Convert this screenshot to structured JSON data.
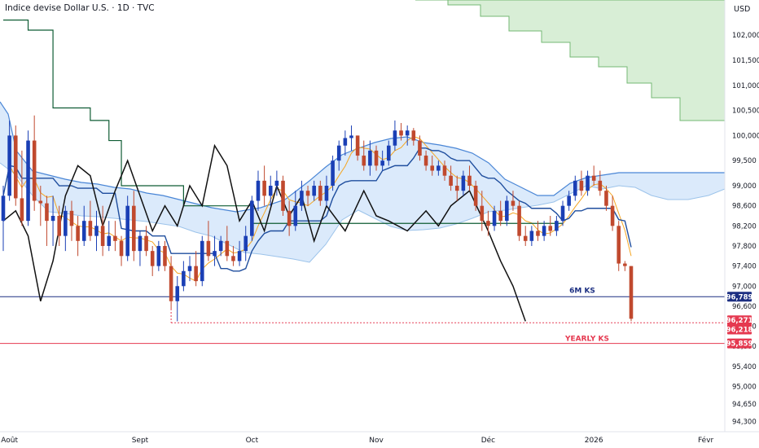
{
  "header": {
    "title": "Indice devise Dollar U.S. · 1D · TVC",
    "currency": "USD"
  },
  "colors": {
    "up": "#1a3fb5",
    "down": "#c0492e",
    "kijun_long": "#0f5c34",
    "black_line": "#111111",
    "tenkan": "#f5a623",
    "kijun": "#1f4e9e",
    "span_a": "#4a86d6",
    "span_b": "#9cc3ea",
    "cloud_bull": "#dbeafb",
    "cloud_green": "#d8eed6",
    "level_6m": "#1c2f82",
    "level_yearly": "#e53950",
    "dotted": "#e53950"
  },
  "chart_data": {
    "type": "candlestick",
    "title": "Indice devise Dollar U.S. · 1D · TVC",
    "y_axis": {
      "ticks": [
        102.0,
        101.5,
        101.0,
        100.5,
        100.0,
        99.5,
        99.0,
        98.6,
        98.2,
        97.8,
        97.4,
        97.0,
        96.6,
        96.2,
        95.8,
        95.4,
        95.0,
        94.65,
        94.3
      ],
      "labels": [
        "102,000",
        "101,500",
        "101,000",
        "100,500",
        "100,000",
        "99,500",
        "99,000",
        "98,600",
        "98,200",
        "97,800",
        "97,400",
        "97,000",
        "96,600",
        "96,200",
        "95,800",
        "95,400",
        "95,000",
        "94,650",
        "94,300"
      ],
      "currency": "USD"
    },
    "x_axis": {
      "labels": [
        "Août",
        "Sept",
        "Oct",
        "Nov",
        "Déc",
        "2026",
        "Févr"
      ],
      "positions": [
        1,
        22,
        40,
        60,
        78,
        95,
        113
      ]
    },
    "candles": [
      {
        "o": 98.3,
        "h": 99.0,
        "l": 97.7,
        "c": 98.8
      },
      {
        "o": 98.8,
        "h": 100.3,
        "l": 98.7,
        "c": 100.0
      },
      {
        "o": 100.0,
        "h": 100.2,
        "l": 98.6,
        "c": 98.75
      },
      {
        "o": 98.75,
        "h": 99.7,
        "l": 98.2,
        "c": 98.3
      },
      {
        "o": 98.3,
        "h": 100.1,
        "l": 98.2,
        "c": 99.9
      },
      {
        "o": 99.9,
        "h": 100.4,
        "l": 98.5,
        "c": 98.7
      },
      {
        "o": 98.7,
        "h": 99.0,
        "l": 98.2,
        "c": 98.65
      },
      {
        "o": 98.65,
        "h": 98.8,
        "l": 97.8,
        "c": 98.3
      },
      {
        "o": 98.3,
        "h": 98.8,
        "l": 97.8,
        "c": 98.4
      },
      {
        "o": 98.4,
        "h": 98.6,
        "l": 97.8,
        "c": 98.0
      },
      {
        "o": 98.0,
        "h": 98.6,
        "l": 97.7,
        "c": 98.5
      },
      {
        "o": 98.5,
        "h": 98.7,
        "l": 97.9,
        "c": 98.2
      },
      {
        "o": 98.2,
        "h": 98.4,
        "l": 97.6,
        "c": 97.9
      },
      {
        "o": 97.9,
        "h": 98.6,
        "l": 97.8,
        "c": 98.3
      },
      {
        "o": 98.3,
        "h": 98.7,
        "l": 97.9,
        "c": 98.0
      },
      {
        "o": 98.0,
        "h": 98.5,
        "l": 97.7,
        "c": 98.2
      },
      {
        "o": 98.2,
        "h": 98.6,
        "l": 97.6,
        "c": 97.8
      },
      {
        "o": 97.8,
        "h": 98.3,
        "l": 97.7,
        "c": 98.0
      },
      {
        "o": 98.0,
        "h": 98.3,
        "l": 97.7,
        "c": 97.9
      },
      {
        "o": 97.9,
        "h": 98.0,
        "l": 97.4,
        "c": 97.6
      },
      {
        "o": 97.6,
        "h": 98.8,
        "l": 97.5,
        "c": 98.6
      },
      {
        "o": 98.6,
        "h": 98.9,
        "l": 97.5,
        "c": 97.7
      },
      {
        "o": 97.7,
        "h": 98.1,
        "l": 97.4,
        "c": 98.0
      },
      {
        "o": 98.0,
        "h": 98.2,
        "l": 97.6,
        "c": 97.7
      },
      {
        "o": 97.7,
        "h": 97.8,
        "l": 97.2,
        "c": 97.4
      },
      {
        "o": 97.4,
        "h": 97.9,
        "l": 97.3,
        "c": 97.8
      },
      {
        "o": 97.8,
        "h": 97.9,
        "l": 97.3,
        "c": 97.4
      },
      {
        "o": 97.4,
        "h": 97.6,
        "l": 96.55,
        "c": 96.7
      },
      {
        "o": 96.7,
        "h": 97.2,
        "l": 96.3,
        "c": 97.0
      },
      {
        "o": 97.0,
        "h": 97.5,
        "l": 96.9,
        "c": 97.3
      },
      {
        "o": 97.3,
        "h": 97.6,
        "l": 97.1,
        "c": 97.4
      },
      {
        "o": 97.4,
        "h": 97.7,
        "l": 97.0,
        "c": 97.1
      },
      {
        "o": 97.1,
        "h": 98.0,
        "l": 97.0,
        "c": 97.9
      },
      {
        "o": 97.9,
        "h": 98.3,
        "l": 97.5,
        "c": 97.6
      },
      {
        "o": 97.6,
        "h": 98.0,
        "l": 97.4,
        "c": 97.7
      },
      {
        "o": 97.7,
        "h": 98.0,
        "l": 97.6,
        "c": 97.9
      },
      {
        "o": 97.9,
        "h": 98.2,
        "l": 97.5,
        "c": 97.6
      },
      {
        "o": 97.6,
        "h": 97.8,
        "l": 97.4,
        "c": 97.5
      },
      {
        "o": 97.5,
        "h": 97.9,
        "l": 97.4,
        "c": 97.7
      },
      {
        "o": 97.7,
        "h": 98.2,
        "l": 97.5,
        "c": 98.0
      },
      {
        "o": 98.0,
        "h": 98.8,
        "l": 97.9,
        "c": 98.7
      },
      {
        "o": 98.7,
        "h": 99.3,
        "l": 98.5,
        "c": 99.1
      },
      {
        "o": 99.1,
        "h": 99.4,
        "l": 98.6,
        "c": 98.8
      },
      {
        "o": 98.8,
        "h": 99.2,
        "l": 98.6,
        "c": 99.0
      },
      {
        "o": 99.0,
        "h": 99.3,
        "l": 98.8,
        "c": 99.1
      },
      {
        "o": 99.1,
        "h": 99.2,
        "l": 98.4,
        "c": 98.5
      },
      {
        "o": 98.5,
        "h": 98.7,
        "l": 98.0,
        "c": 98.2
      },
      {
        "o": 98.2,
        "h": 98.9,
        "l": 98.1,
        "c": 98.6
      },
      {
        "o": 98.6,
        "h": 99.1,
        "l": 98.5,
        "c": 98.9
      },
      {
        "o": 98.9,
        "h": 99.0,
        "l": 98.6,
        "c": 98.8
      },
      {
        "o": 98.8,
        "h": 99.1,
        "l": 98.7,
        "c": 99.0
      },
      {
        "o": 99.0,
        "h": 99.1,
        "l": 98.6,
        "c": 98.7
      },
      {
        "o": 98.7,
        "h": 99.2,
        "l": 98.6,
        "c": 99.0
      },
      {
        "o": 99.0,
        "h": 99.6,
        "l": 98.9,
        "c": 99.5
      },
      {
        "o": 99.5,
        "h": 99.9,
        "l": 99.3,
        "c": 99.8
      },
      {
        "o": 99.8,
        "h": 100.1,
        "l": 99.6,
        "c": 99.95
      },
      {
        "o": 99.95,
        "h": 100.2,
        "l": 99.7,
        "c": 100.0
      },
      {
        "o": 100.0,
        "h": 100.0,
        "l": 99.5,
        "c": 99.6
      },
      {
        "o": 99.6,
        "h": 99.9,
        "l": 99.3,
        "c": 99.4
      },
      {
        "o": 99.4,
        "h": 99.9,
        "l": 99.2,
        "c": 99.7
      },
      {
        "o": 99.7,
        "h": 99.8,
        "l": 99.3,
        "c": 99.4
      },
      {
        "o": 99.4,
        "h": 99.7,
        "l": 99.3,
        "c": 99.5
      },
      {
        "o": 99.5,
        "h": 99.9,
        "l": 99.4,
        "c": 99.8
      },
      {
        "o": 99.8,
        "h": 100.3,
        "l": 99.7,
        "c": 100.1
      },
      {
        "o": 100.1,
        "h": 100.25,
        "l": 99.9,
        "c": 100.0
      },
      {
        "o": 100.0,
        "h": 100.2,
        "l": 99.8,
        "c": 100.1
      },
      {
        "o": 100.1,
        "h": 100.15,
        "l": 99.8,
        "c": 99.9
      },
      {
        "o": 99.9,
        "h": 100.0,
        "l": 99.5,
        "c": 99.6
      },
      {
        "o": 99.6,
        "h": 99.7,
        "l": 99.3,
        "c": 99.4
      },
      {
        "o": 99.4,
        "h": 99.6,
        "l": 99.2,
        "c": 99.3
      },
      {
        "o": 99.3,
        "h": 99.5,
        "l": 99.2,
        "c": 99.4
      },
      {
        "o": 99.4,
        "h": 99.5,
        "l": 99.1,
        "c": 99.2
      },
      {
        "o": 99.2,
        "h": 99.4,
        "l": 98.9,
        "c": 99.0
      },
      {
        "o": 99.0,
        "h": 99.2,
        "l": 98.7,
        "c": 98.9
      },
      {
        "o": 98.9,
        "h": 99.3,
        "l": 98.8,
        "c": 99.2
      },
      {
        "o": 99.2,
        "h": 99.4,
        "l": 98.9,
        "c": 99.0
      },
      {
        "o": 99.0,
        "h": 99.1,
        "l": 98.5,
        "c": 98.6
      },
      {
        "o": 98.6,
        "h": 98.9,
        "l": 98.1,
        "c": 98.3
      },
      {
        "o": 98.3,
        "h": 98.5,
        "l": 98.0,
        "c": 98.2
      },
      {
        "o": 98.2,
        "h": 98.6,
        "l": 98.1,
        "c": 98.5
      },
      {
        "o": 98.5,
        "h": 98.7,
        "l": 98.2,
        "c": 98.3
      },
      {
        "o": 98.3,
        "h": 98.8,
        "l": 98.2,
        "c": 98.7
      },
      {
        "o": 98.7,
        "h": 98.9,
        "l": 98.5,
        "c": 98.6
      },
      {
        "o": 98.6,
        "h": 98.7,
        "l": 97.9,
        "c": 98.0
      },
      {
        "o": 98.0,
        "h": 98.2,
        "l": 97.8,
        "c": 97.9
      },
      {
        "o": 97.9,
        "h": 98.2,
        "l": 97.8,
        "c": 98.1
      },
      {
        "o": 98.1,
        "h": 98.3,
        "l": 97.9,
        "c": 98.0
      },
      {
        "o": 98.0,
        "h": 98.3,
        "l": 97.9,
        "c": 98.2
      },
      {
        "o": 98.2,
        "h": 98.4,
        "l": 98.0,
        "c": 98.1
      },
      {
        "o": 98.1,
        "h": 98.4,
        "l": 98.0,
        "c": 98.3
      },
      {
        "o": 98.3,
        "h": 98.7,
        "l": 98.2,
        "c": 98.6
      },
      {
        "o": 98.6,
        "h": 98.9,
        "l": 98.5,
        "c": 98.8
      },
      {
        "o": 98.8,
        "h": 99.2,
        "l": 98.7,
        "c": 99.1
      },
      {
        "o": 99.1,
        "h": 99.3,
        "l": 98.8,
        "c": 98.9
      },
      {
        "o": 98.9,
        "h": 99.3,
        "l": 98.8,
        "c": 99.2
      },
      {
        "o": 99.2,
        "h": 99.4,
        "l": 99.0,
        "c": 99.1
      },
      {
        "o": 99.1,
        "h": 99.3,
        "l": 98.8,
        "c": 98.9
      },
      {
        "o": 98.9,
        "h": 99.0,
        "l": 98.5,
        "c": 98.6
      },
      {
        "o": 98.6,
        "h": 98.8,
        "l": 98.1,
        "c": 98.2
      },
      {
        "o": 98.2,
        "h": 98.3,
        "l": 97.3,
        "c": 97.45
      },
      {
        "o": 97.45,
        "h": 97.5,
        "l": 97.3,
        "c": 97.4
      },
      {
        "o": 97.4,
        "h": 97.4,
        "l": 96.3,
        "c": 96.35
      }
    ],
    "lines": [
      {
        "name": "kijun_long",
        "values": [
          [
            0,
            102.3
          ],
          [
            4,
            102.3
          ],
          [
            4,
            102.1
          ],
          [
            8,
            102.1
          ],
          [
            8,
            100.55
          ],
          [
            14,
            100.55
          ],
          [
            14,
            100.3
          ],
          [
            17,
            100.3
          ],
          [
            17,
            99.9
          ],
          [
            19,
            99.9
          ],
          [
            19,
            99.0
          ],
          [
            29,
            99.0
          ],
          [
            29,
            98.6
          ],
          [
            40,
            98.6
          ],
          [
            40,
            98.25
          ],
          [
            90,
            98.25
          ]
        ]
      },
      {
        "name": "black",
        "values": [
          [
            0,
            98.3
          ],
          [
            2,
            98.5
          ],
          [
            4,
            98.0
          ],
          [
            6,
            96.7
          ],
          [
            8,
            97.5
          ],
          [
            10,
            98.8
          ],
          [
            12,
            99.4
          ],
          [
            14,
            99.2
          ],
          [
            16,
            98.2
          ],
          [
            18,
            98.9
          ],
          [
            20,
            99.5
          ],
          [
            22,
            98.8
          ],
          [
            24,
            98.1
          ],
          [
            26,
            98.6
          ],
          [
            28,
            98.2
          ],
          [
            30,
            99.0
          ],
          [
            32,
            98.6
          ],
          [
            34,
            99.8
          ],
          [
            36,
            99.4
          ],
          [
            38,
            98.3
          ],
          [
            40,
            98.7
          ],
          [
            42,
            98.1
          ],
          [
            44,
            99.0
          ],
          [
            46,
            98.4
          ],
          [
            48,
            98.8
          ],
          [
            50,
            97.9
          ],
          [
            52,
            98.6
          ],
          [
            55,
            98.1
          ],
          [
            58,
            98.9
          ],
          [
            60,
            98.4
          ],
          [
            62,
            98.3
          ],
          [
            65,
            98.1
          ],
          [
            68,
            98.5
          ],
          [
            70,
            98.2
          ],
          [
            72,
            98.6
          ],
          [
            75,
            98.9
          ],
          [
            78,
            98.1
          ],
          [
            80,
            97.5
          ],
          [
            82,
            97.0
          ],
          [
            84,
            96.3
          ]
        ]
      }
    ],
    "levels": [
      {
        "label": "6M KS",
        "value": 96.789,
        "tag": "96,789"
      },
      {
        "label": "YEARLY KS",
        "value": 95.859,
        "tag": "95,859"
      },
      {
        "label": "",
        "value": 96.271,
        "tag": "96,271"
      },
      {
        "label": "",
        "value": 96.218,
        "tag": "96,218"
      }
    ],
    "ylim": [
      94.1,
      102.7
    ],
    "grid": false
  }
}
